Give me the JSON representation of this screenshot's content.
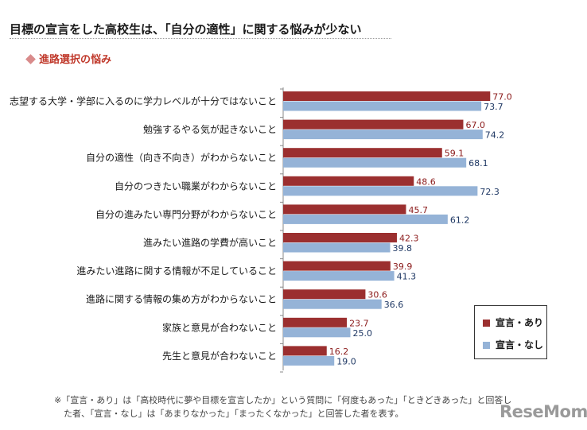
{
  "header": {
    "title": "目標の宣言をした高校生は、「自分の適性」に関する悩みが少ない",
    "subtitle": "進路選択の悩み"
  },
  "chart_data": {
    "type": "bar",
    "orientation": "horizontal",
    "categories": [
      "志望する大学・学部に入るのに学力レベルが十分ではないこと",
      "勉強するやる気が起きないこと",
      "自分の適性（向き不向き）がわからないこと",
      "自分のつきたい職業がわからないこと",
      "自分の進みたい専門分野がわからないこと",
      "進みたい進路の学費が高いこと",
      "進みたい進路に関する情報が不足していること",
      "進路に関する情報の集め方がわからないこと",
      "家族と意見が合わないこと",
      "先生と意見が合わないこと"
    ],
    "series": [
      {
        "name": "宣言・あり",
        "color": "#9b2f2f",
        "label_color": "#8b1a1a",
        "values": [
          77.0,
          67.0,
          59.1,
          48.6,
          45.7,
          42.3,
          39.9,
          30.6,
          23.7,
          16.2
        ]
      },
      {
        "name": "宣言・なし",
        "color": "#95b3d7",
        "label_color": "#1f3864",
        "values": [
          73.7,
          74.2,
          68.1,
          72.3,
          61.2,
          39.8,
          41.3,
          36.6,
          25.0,
          19.0
        ]
      }
    ],
    "xlim": [
      0,
      100
    ],
    "legend_position": "bottom-right",
    "grid": false
  },
  "legend": {
    "items": [
      "宣言・あり",
      "宣言・なし"
    ]
  },
  "footnote": {
    "line1": "※「宣言・あり」は「高校時代に夢や目標を宣言したか」という質問に「何度もあった」「ときどきあった」と回答し",
    "line2": "た者、「宣言・なし」は「あまりなかった」「まったくなかった」と回答した者を表す。"
  },
  "watermark": "ReseMom"
}
